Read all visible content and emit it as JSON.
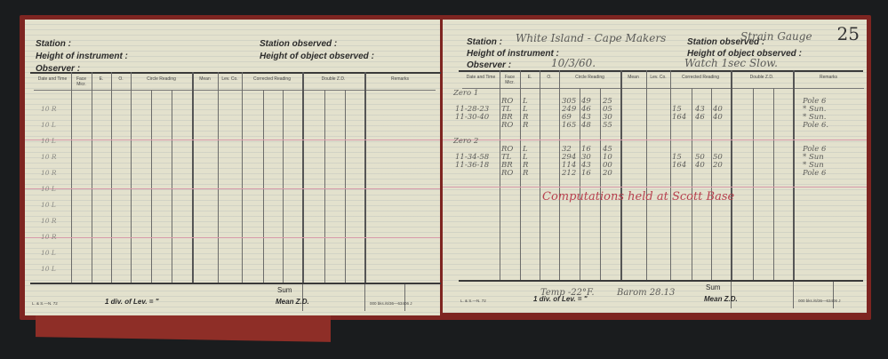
{
  "form": {
    "station_label": "Station :",
    "height_instrument_label": "Height of instrument :",
    "observer_label": "Observer :",
    "station_observed_label": "Station observed :",
    "height_object_label": "Height of object observed :",
    "columns": [
      "Date and Time",
      "Face Micr.",
      "E.",
      "O.",
      "Circle Reading",
      "Mean",
      "Lev. Co.",
      "Corrected Reading",
      "Double Z.D.",
      "Remarks"
    ],
    "sum_label": "Sum",
    "mean_zd_label": "Mean Z.D.",
    "div_lev_label": "1 div. of Lev. = \"",
    "form_code": "L. & S.—N. 72",
    "print_code": "000 bks./6/36—63406 J"
  },
  "left_page": {
    "margin_marks": [
      "10 R",
      "10 L",
      "10 L",
      "10 R",
      "10 R",
      "10 L",
      "10 L",
      "10 R",
      "10 R",
      "10 L",
      "10 L"
    ]
  },
  "right_page": {
    "page_number": "25",
    "station": "White Island - Cape Makers",
    "station_observed": "Strain Gauge",
    "date": "10/3/60.",
    "watch_note": "Watch 1sec Slow.",
    "groups": [
      {
        "title": "Zero 1",
        "times": [
          "11-28-23",
          "11-30-40"
        ],
        "rows": [
          {
            "face": "RO",
            "eo": "L",
            "circle": [
              "305",
              "49",
              "25"
            ]
          },
          {
            "face": "TL",
            "eo": "L",
            "circle": [
              "249",
              "46",
              "05"
            ]
          },
          {
            "face": "BR",
            "eo": "R",
            "circle": [
              "69",
              "43",
              "30"
            ]
          },
          {
            "face": "RO",
            "eo": "R",
            "circle": [
              "165",
              "48",
              "55"
            ]
          }
        ],
        "corrected": [
          [
            "15",
            "43",
            "40"
          ],
          [
            "164",
            "46",
            "40"
          ]
        ],
        "remarks": [
          "Pole 6",
          "* Sun.",
          "* Sun.",
          "Pole 6."
        ]
      },
      {
        "title": "Zero 2",
        "times": [
          "11-34-58",
          "11-36-18"
        ],
        "rows": [
          {
            "face": "RO",
            "eo": "L",
            "circle": [
              "32",
              "16",
              "45"
            ]
          },
          {
            "face": "TL",
            "eo": "L",
            "circle": [
              "294",
              "30",
              "10"
            ]
          },
          {
            "face": "BR",
            "eo": "R",
            "circle": [
              "114",
              "43",
              "00"
            ]
          },
          {
            "face": "RO",
            "eo": "R",
            "circle": [
              "212",
              "16",
              "20"
            ]
          }
        ],
        "corrected": [
          [
            "15",
            "50",
            "50"
          ],
          [
            "164",
            "40",
            "20"
          ]
        ],
        "remarks": [
          "Pole 6",
          "* Sun",
          "* Sun",
          "Pole 6"
        ]
      }
    ],
    "red_note": "Computations held at Scott Base",
    "temp_note": "Temp -22°F.",
    "barom_note": "Barom 28.13"
  },
  "colors": {
    "paper": "#e3e1cd",
    "cover": "#7e2521",
    "red_ink": "#b8414f",
    "pencil": "#5b5b58"
  }
}
